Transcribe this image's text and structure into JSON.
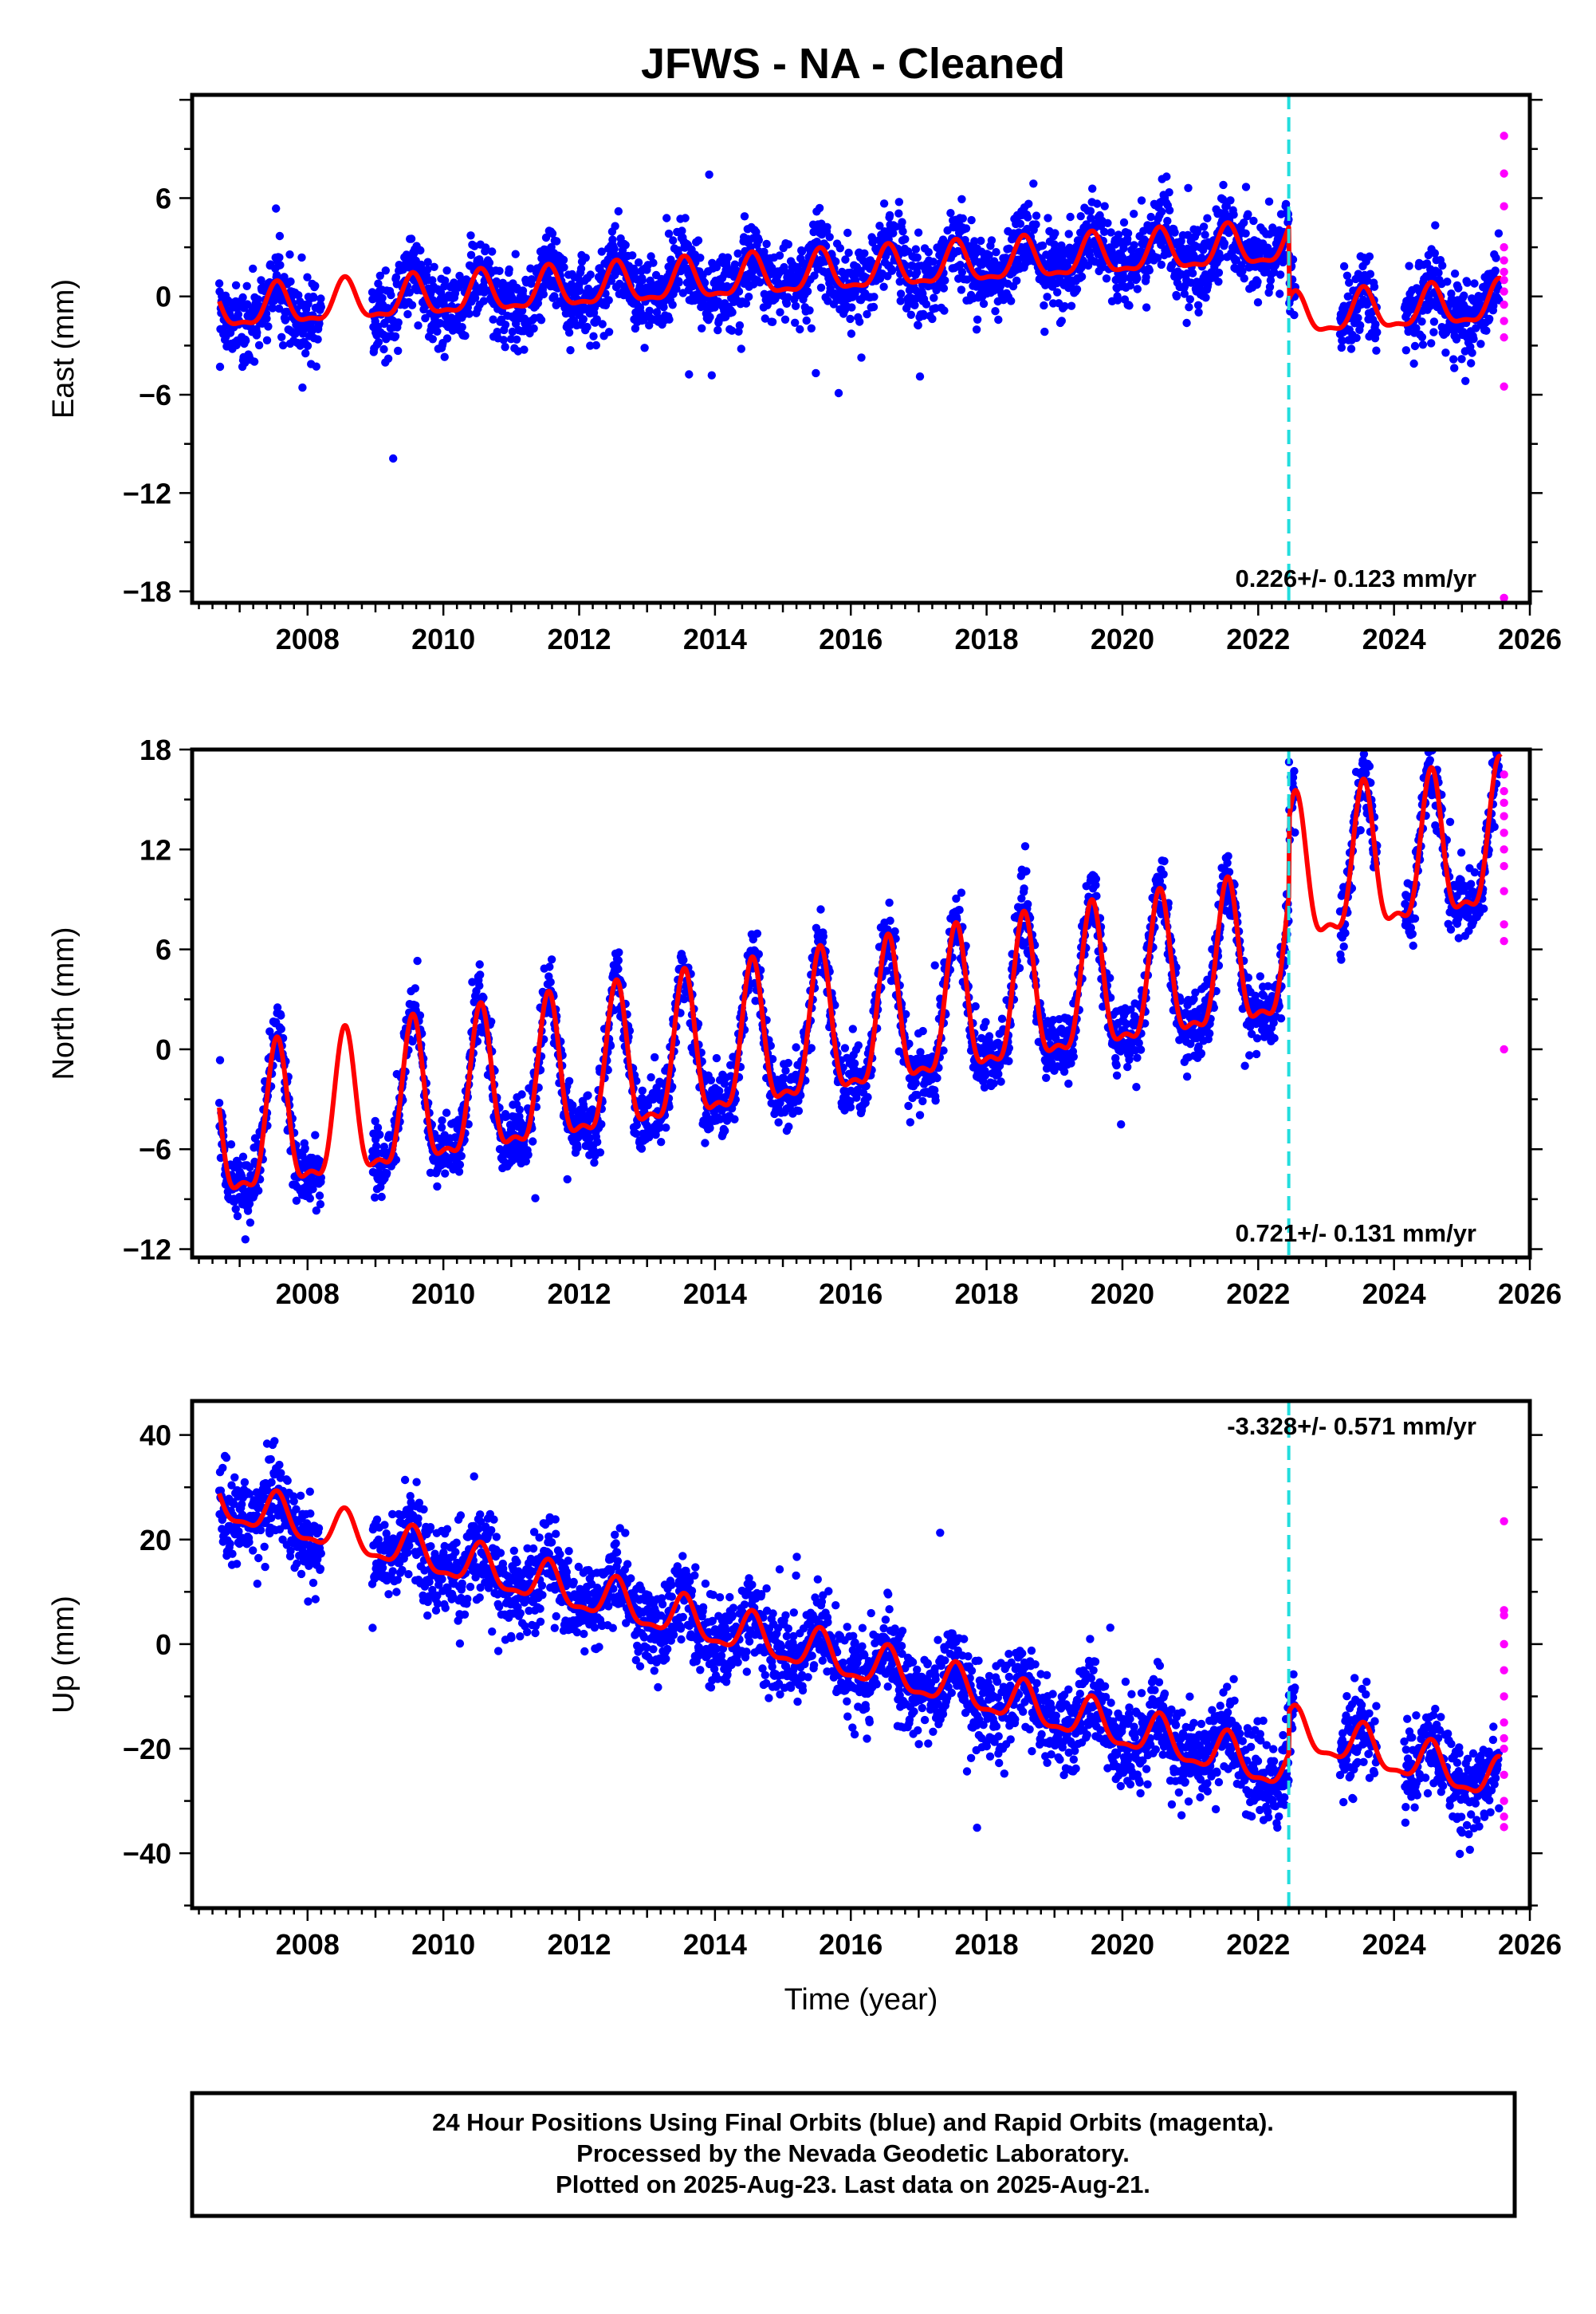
{
  "chart_data": [
    {
      "type": "scatter",
      "id": "east",
      "ylabel": "East (mm)",
      "xlim": [
        2006.3,
        2026.0
      ],
      "ylim": [
        -18.7,
        12.3
      ],
      "xticks": [
        2008,
        2010,
        2012,
        2014,
        2016,
        2018,
        2020,
        2022,
        2024,
        2026
      ],
      "yticks": [
        6,
        0,
        -6,
        -12,
        -18
      ],
      "ytick_labels": [
        "6",
        "0",
        "−6",
        "−12",
        "−18"
      ],
      "rate": "0.226+/- 0.123 mm/yr",
      "rate_position": "bottom-right",
      "offset_epoch": 2022.45,
      "series": [
        {
          "name": "Final Orbits",
          "color": "#0000ff",
          "x_range": [
            2006.7,
            2025.55
          ],
          "gaps": [
            [
              2008.2,
              2008.95
            ],
            [
              2022.55,
              2023.2
            ],
            [
              2023.75,
              2024.15
            ]
          ],
          "trend": {
            "value_at_2007": -0.8,
            "value_at_2022": 3.0,
            "offset_at_epoch": -4.4
          },
          "annual_amplitude": 1.2,
          "scatter": 1.2
        },
        {
          "name": "Rapid Orbits",
          "color": "#ff00ff",
          "x": 2025.62,
          "values": [
            9.8,
            7.5,
            5.5,
            3.0,
            2.2,
            1.5,
            1.0,
            0.3,
            -0.5,
            -1.5,
            -2.5,
            -5.5,
            -18.4
          ]
        }
      ],
      "model": {
        "color": "#ff0000"
      }
    },
    {
      "type": "scatter",
      "id": "north",
      "ylabel": "North (mm)",
      "xlim": [
        2006.3,
        2026.0
      ],
      "ylim": [
        -12.5,
        18.0
      ],
      "xticks": [
        2008,
        2010,
        2012,
        2014,
        2016,
        2018,
        2020,
        2022,
        2024,
        2026
      ],
      "yticks": [
        18,
        12,
        6,
        0,
        -6,
        -12
      ],
      "ytick_labels": [
        "18",
        "12",
        "6",
        "0",
        "−6",
        "−12"
      ],
      "rate": "0.721+/- 0.131 mm/yr",
      "rate_position": "bottom-right",
      "offset_epoch": 2022.45,
      "series": [
        {
          "name": "Final Orbits",
          "color": "#0000ff",
          "x_range": [
            2006.7,
            2025.55
          ],
          "gaps": [
            [
              2008.2,
              2008.95
            ],
            [
              2022.55,
              2023.2
            ],
            [
              2023.75,
              2024.15
            ]
          ],
          "trend": {
            "value_at_2007": -5.3,
            "value_at_2022": 5.0,
            "offset_at_epoch": 4.5
          },
          "annual_amplitude": 4.2,
          "scatter": 1.0
        },
        {
          "name": "Rapid Orbits",
          "color": "#ff00ff",
          "x": 2025.62,
          "values": [
            16.5,
            15.5,
            14.8,
            14.0,
            13.0,
            12.0,
            11.0,
            9.5,
            7.5,
            6.5,
            0.0
          ]
        }
      ],
      "model": {
        "color": "#ff0000"
      }
    },
    {
      "type": "scatter",
      "id": "up",
      "ylabel": "Up (mm)",
      "xlabel": "Time (year)",
      "xlim": [
        2006.3,
        2026.0
      ],
      "ylim": [
        -50.5,
        46.5
      ],
      "xticks": [
        2008,
        2010,
        2012,
        2014,
        2016,
        2018,
        2020,
        2022,
        2024,
        2026
      ],
      "yticks": [
        40,
        20,
        0,
        -20,
        -40
      ],
      "ytick_labels": [
        "40",
        "20",
        "0",
        "−20",
        "−40"
      ],
      "rate": "-3.328+/- 0.571 mm/yr",
      "rate_position": "top-right",
      "offset_epoch": 2022.45,
      "series": [
        {
          "name": "Final Orbits",
          "color": "#0000ff",
          "x_range": [
            2006.7,
            2025.55
          ],
          "gaps": [
            [
              2008.2,
              2008.95
            ],
            [
              2022.55,
              2023.2
            ],
            [
              2023.75,
              2024.15
            ]
          ],
          "trend": {
            "value_at_2007": 26.0,
            "value_at_2022": -23.0,
            "offset_at_epoch": 8.0
          },
          "annual_amplitude": 3.8,
          "scatter": 4.2
        },
        {
          "name": "Rapid Orbits",
          "color": "#ff00ff",
          "x": 2025.62,
          "values": [
            23.5,
            6.5,
            5.5,
            0.0,
            -5.0,
            -10.0,
            -15.0,
            -18.0,
            -20.0,
            -25.0,
            -30.0,
            -33.0,
            -35.0
          ]
        }
      ],
      "model": {
        "color": "#ff0000"
      }
    }
  ],
  "title": "JFWS  - NA - Cleaned",
  "offset_line_color": "#22dddd",
  "footer": {
    "line1": "24 Hour Positions Using Final Orbits (blue) and Rapid Orbits (magenta).",
    "line2": "Processed by the Nevada Geodetic Laboratory.",
    "line3": "Plotted on 2025-Aug-23. Last data on 2025-Aug-21."
  }
}
